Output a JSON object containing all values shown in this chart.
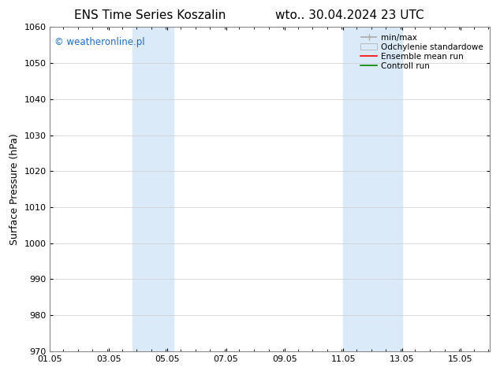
{
  "title_left": "ENS Time Series Koszalin",
  "title_right": "wto.. 30.04.2024 23 UTC",
  "ylabel": "Surface Pressure (hPa)",
  "ylim": [
    970,
    1060
  ],
  "yticks": [
    970,
    980,
    990,
    1000,
    1010,
    1020,
    1030,
    1040,
    1050,
    1060
  ],
  "xlim_start": 1.05,
  "xlim_end": 16.05,
  "xtick_labels": [
    "01.05",
    "03.05",
    "05.05",
    "07.05",
    "09.05",
    "11.05",
    "13.05",
    "15.05"
  ],
  "xtick_positions": [
    1.05,
    3.05,
    5.05,
    7.05,
    9.05,
    11.05,
    13.05,
    15.05
  ],
  "shaded_regions": [
    {
      "xmin": 3.85,
      "xmax": 5.25,
      "color": "#daeaf8"
    },
    {
      "xmin": 11.05,
      "xmax": 13.05,
      "color": "#daeaf8"
    }
  ],
  "watermark": "© weatheronline.pl",
  "watermark_color": "#1a6dc4",
  "background_color": "#ffffff",
  "plot_bg_color": "#ffffff",
  "grid_color": "#cccccc",
  "legend_items": [
    {
      "label": "min/max",
      "color": "#aaaaaa",
      "lw": 1.2,
      "style": "minmax"
    },
    {
      "label": "Odchylenie standardowe",
      "color": "#daeaf8",
      "lw": 8,
      "style": "band"
    },
    {
      "label": "Ensemble mean run",
      "color": "#ff0000",
      "lw": 1.2,
      "style": "line"
    },
    {
      "label": "Controll run",
      "color": "#008000",
      "lw": 1.2,
      "style": "line"
    }
  ],
  "title_fontsize": 11,
  "axis_label_fontsize": 9,
  "tick_fontsize": 8,
  "legend_fontsize": 7.5
}
